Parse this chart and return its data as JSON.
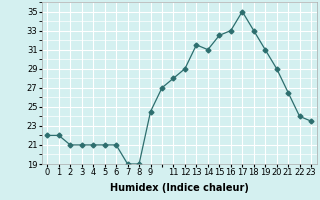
{
  "x": [
    0,
    1,
    2,
    3,
    4,
    5,
    6,
    7,
    8,
    9,
    10,
    11,
    12,
    13,
    14,
    15,
    16,
    17,
    18,
    19,
    20,
    21,
    22,
    23
  ],
  "y": [
    22,
    22,
    21,
    21,
    21,
    21,
    21,
    19,
    19,
    24.5,
    27,
    28,
    29,
    31.5,
    31,
    32.5,
    33,
    35,
    33,
    31,
    29,
    26.5,
    24,
    23.5
  ],
  "line_color": "#2d6e6e",
  "marker": "D",
  "marker_size": 2.5,
  "bg_color": "#d4f0f0",
  "grid_color": "#ffffff",
  "xlabel": "Humidex (Indice chaleur)",
  "xlim": [
    -0.5,
    23.5
  ],
  "ylim": [
    19,
    36
  ],
  "yticks": [
    19,
    21,
    23,
    25,
    27,
    29,
    31,
    33,
    35
  ],
  "xtick_labels": [
    "0",
    "1",
    "2",
    "3",
    "4",
    "5",
    "6",
    "7",
    "8",
    "9",
    "",
    "11",
    "12",
    "13",
    "14",
    "15",
    "16",
    "17",
    "18",
    "19",
    "20",
    "21",
    "22",
    "23"
  ],
  "xlabel_fontsize": 7,
  "tick_fontsize": 6
}
